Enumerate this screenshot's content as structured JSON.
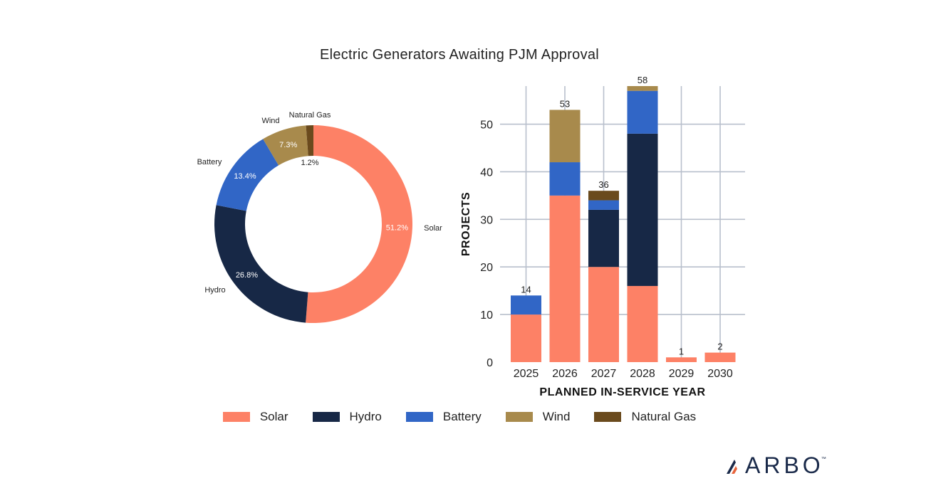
{
  "chart_data": [
    {
      "type": "pie",
      "title": "Electric Generators Awaiting PJM Approval",
      "slices": [
        {
          "label": "Solar",
          "value": 51.2,
          "value_label": "51.2%",
          "color": "#fd8166"
        },
        {
          "label": "Hydro",
          "value": 26.8,
          "value_label": "26.8%",
          "color": "#172846"
        },
        {
          "label": "Battery",
          "value": 13.4,
          "value_label": "13.4%",
          "color": "#3166c6"
        },
        {
          "label": "Wind",
          "value": 7.3,
          "value_label": "7.3%",
          "color": "#a88a4c"
        },
        {
          "label": "Natural Gas",
          "value": 1.2,
          "value_label": "1.2%",
          "color": "#6a4a1d"
        }
      ]
    },
    {
      "type": "bar",
      "stacked": true,
      "categories": [
        "2025",
        "2026",
        "2027",
        "2028",
        "2029",
        "2030"
      ],
      "series": [
        {
          "name": "Solar",
          "values": [
            10,
            35,
            20,
            16,
            1,
            2
          ],
          "color": "#fd8166"
        },
        {
          "name": "Hydro",
          "values": [
            0,
            0,
            12,
            32,
            0,
            0
          ],
          "color": "#172846"
        },
        {
          "name": "Battery",
          "values": [
            4,
            7,
            2,
            9,
            0,
            0
          ],
          "color": "#3166c6"
        },
        {
          "name": "Wind",
          "values": [
            0,
            11,
            0,
            1,
            0,
            0
          ],
          "color": "#a88a4c"
        },
        {
          "name": "Natural Gas",
          "values": [
            0,
            0,
            2,
            0,
            0,
            0
          ],
          "color": "#6a4a1d"
        }
      ],
      "totals": [
        14,
        53,
        36,
        58,
        1,
        2
      ],
      "xlabel": "PLANNED IN-SERVICE YEAR",
      "ylabel": "PROJECTS",
      "ylim": [
        0,
        58
      ],
      "yticks": [
        0,
        10,
        20,
        30,
        40,
        50
      ],
      "grid": true
    }
  ],
  "title": "Electric Generators Awaiting PJM Approval",
  "legend": [
    {
      "label": "Solar",
      "color": "#fd8166"
    },
    {
      "label": "Hydro",
      "color": "#172846"
    },
    {
      "label": "Battery",
      "color": "#3166c6"
    },
    {
      "label": "Wind",
      "color": "#a88a4c"
    },
    {
      "label": "Natural Gas",
      "color": "#6a4a1d"
    }
  ],
  "logo": {
    "text": "ARBO",
    "tm": "™"
  }
}
